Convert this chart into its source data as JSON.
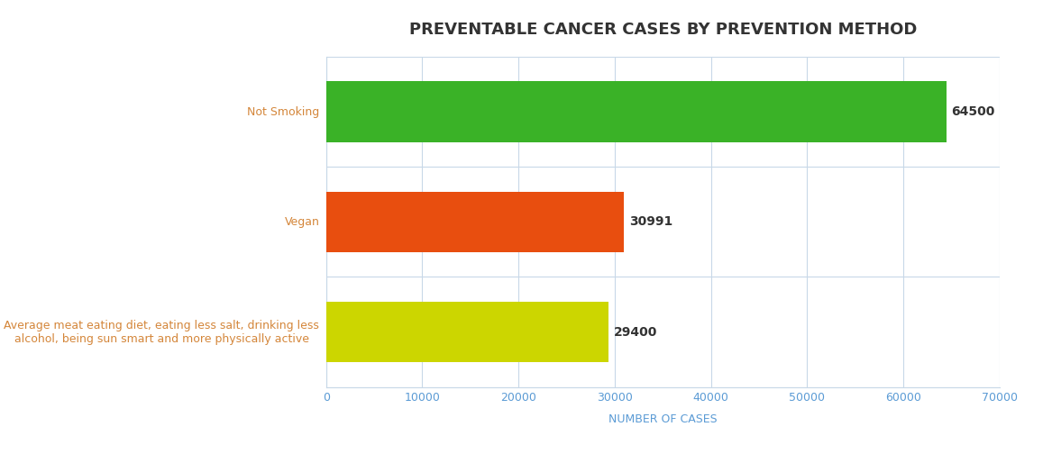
{
  "title": "PREVENTABLE CANCER CASES BY PREVENTION METHOD",
  "categories": [
    "Average meat eating diet, eating less salt, drinking less\nalcohol, being sun smart and more physically active",
    "Vegan",
    "Not Smoking"
  ],
  "values": [
    29400,
    30991,
    64500
  ],
  "bar_colors": [
    "#ccd600",
    "#e84e0f",
    "#3ab227"
  ],
  "xlabel": "NUMBER OF CASES",
  "xlim": [
    0,
    70000
  ],
  "xticks": [
    0,
    10000,
    20000,
    30000,
    40000,
    50000,
    60000,
    70000
  ],
  "xtick_labels": [
    "0",
    "10000",
    "20000",
    "30000",
    "40000",
    "50000",
    "60000",
    "70000"
  ],
  "title_fontsize": 13,
  "xlabel_fontsize": 9,
  "ylabel_color": "#d4863a",
  "tick_color": "#5b9bd5",
  "title_color": "#333333",
  "value_label_color": "#333333",
  "value_label_fontsize": 10,
  "bar_height": 0.55,
  "background_color": "#ffffff",
  "grid_color": "#c8d8e8"
}
